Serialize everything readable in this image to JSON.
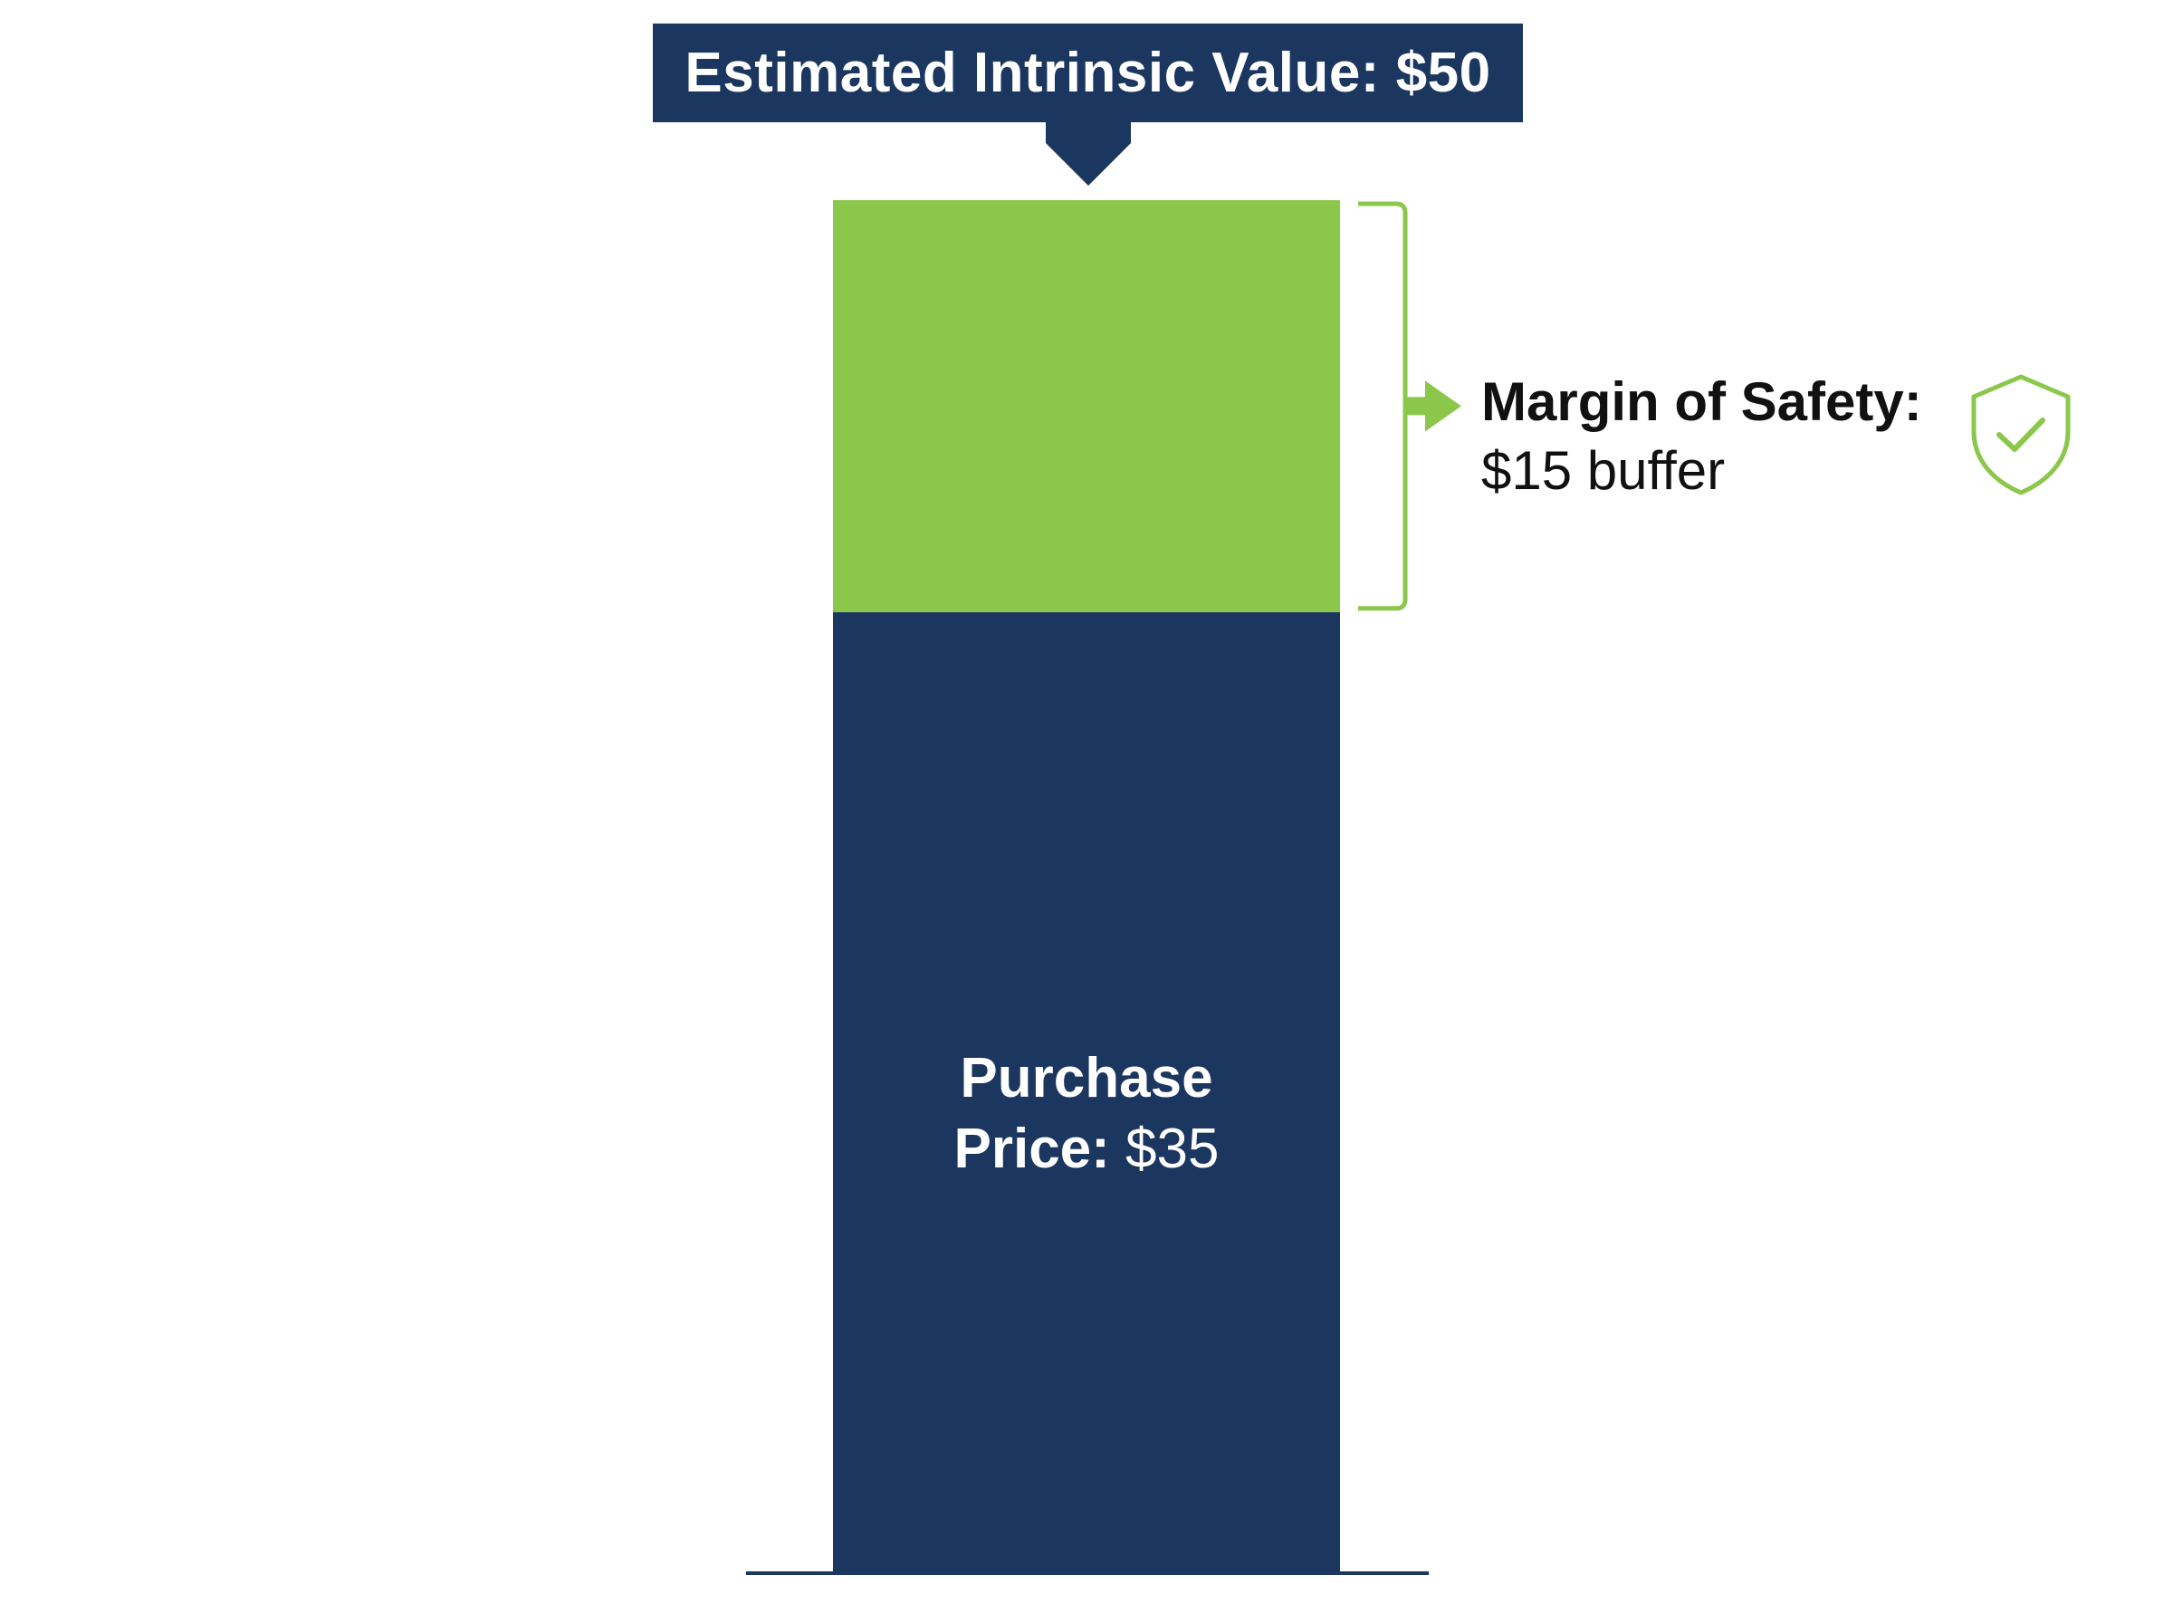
{
  "title": "Estimated Intrinsic Value: $50",
  "margin": {
    "label_bold": "Margin of Safety:",
    "label_value": "$15 buffer",
    "icon": "shield-check-icon"
  },
  "price": {
    "label_line1": "Purchase",
    "label_line2_bold": "Price:",
    "label_line2_value": "$35"
  },
  "chart_data": {
    "type": "bar",
    "stacked": true,
    "categories": [
      ""
    ],
    "series": [
      {
        "name": "Purchase Price",
        "values": [
          35
        ],
        "color": "#1b365f"
      },
      {
        "name": "Margin of Safety",
        "values": [
          15
        ],
        "color": "#8bc74a"
      }
    ],
    "total": 50,
    "ylim": [
      0,
      50
    ],
    "grid": false,
    "legend": "none"
  },
  "colors": {
    "navy": "#1b365f",
    "green": "#8bc74a"
  }
}
